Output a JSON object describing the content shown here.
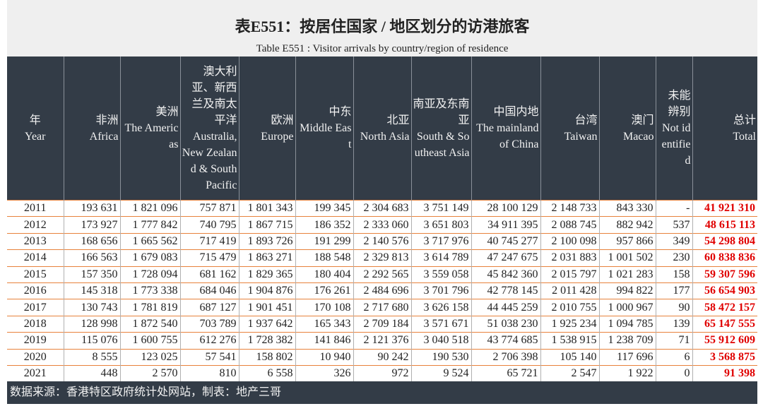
{
  "header": {
    "title": "表E551：按居住国家 / 地区划分的访港旅客",
    "subtitle": "Table E551 : Visitor arrivals by country/region of residence"
  },
  "table": {
    "columns": [
      {
        "zh": "年",
        "en": "Year"
      },
      {
        "zh": "非洲",
        "en": "Africa"
      },
      {
        "zh": "美洲",
        "en": "The Americas"
      },
      {
        "zh": "澳大利亚、新西兰及南太平洋",
        "en": "Australia, New Zealand & South Pacific"
      },
      {
        "zh": "欧洲",
        "en": "Europe"
      },
      {
        "zh": "中东",
        "en": "Middle East"
      },
      {
        "zh": "北亚",
        "en": "North Asia"
      },
      {
        "zh": "南亚及东南亚",
        "en": "South & Southeast Asia"
      },
      {
        "zh": "中国内地",
        "en": "The mainland of China"
      },
      {
        "zh": "台湾",
        "en": "Taiwan"
      },
      {
        "zh": "澳门",
        "en": "Macao"
      },
      {
        "zh": "未能辨别",
        "en": "Not identified"
      },
      {
        "zh": "总计",
        "en": "Total"
      }
    ],
    "rows": [
      [
        "2011",
        "193 631",
        "1 821 096",
        "757 871",
        "1 801 343",
        "199 345",
        "2 304 683",
        "3 751 149",
        "28 100 129",
        "2 148 733",
        "843 330",
        "-",
        "41 921 310"
      ],
      [
        "2012",
        "173 927",
        "1 777 842",
        "740 795",
        "1 867 715",
        "186 352",
        "2 333 060",
        "3 651 803",
        "34 911 395",
        "2 088 745",
        "882 942",
        "537",
        "48 615 113"
      ],
      [
        "2013",
        "168 656",
        "1 665 562",
        "717 419",
        "1 893 726",
        "191 299",
        "2 140 576",
        "3 717 976",
        "40 745 277",
        "2 100 098",
        "957 866",
        "349",
        "54 298 804"
      ],
      [
        "2014",
        "166 563",
        "1 679 083",
        "715 479",
        "1 863 271",
        "188 548",
        "2 329 813",
        "3 614 789",
        "47 247 675",
        "2 031 883",
        "1 001 502",
        "230",
        "60 838 836"
      ],
      [
        "2015",
        "157 350",
        "1 728 094",
        "681 162",
        "1 829 365",
        "180 404",
        "2 292 565",
        "3 559 058",
        "45 842 360",
        "2 015 797",
        "1 021 283",
        "158",
        "59 307 596"
      ],
      [
        "2016",
        "145 318",
        "1 773 338",
        "684 046",
        "1 904 876",
        "176 261",
        "2 484 696",
        "3 701 796",
        "42 778 145",
        "2 011 428",
        "994 822",
        "177",
        "56 654 903"
      ],
      [
        "2017",
        "130 743",
        "1 781 819",
        "687 127",
        "1 901 451",
        "170 108",
        "2 717 680",
        "3 626 158",
        "44 445 259",
        "2 010 755",
        "1 000 967",
        "90",
        "58 472 157"
      ],
      [
        "2018",
        "128 998",
        "1 872 540",
        "703 789",
        "1 937 642",
        "165 343",
        "2 709 184",
        "3 571 671",
        "51 038 230",
        "1 925 234",
        "1 094 785",
        "139",
        "65 147 555"
      ],
      [
        "2019",
        "115 076",
        "1 600 755",
        "612 276",
        "1 728 382",
        "141 846",
        "2 121 376",
        "3 040 518",
        "43 774 685",
        "1 538 915",
        "1 238 709",
        "71",
        "55 912 609"
      ],
      [
        "2020",
        "8 555",
        "123 025",
        "57 541",
        "158 802",
        "10 940",
        "90 242",
        "190 530",
        "2 706 398",
        "105 140",
        "117 696",
        "6",
        "3 568 875"
      ],
      [
        "2021",
        "448",
        "2 570",
        "810",
        "6 558",
        "326",
        "972",
        "9 524",
        "65 721",
        "2 547",
        "1 922",
        "0",
        "91 398"
      ]
    ]
  },
  "footer": {
    "source": "数据来源：香港特区政府统计处网站，制表：地产三哥"
  }
}
